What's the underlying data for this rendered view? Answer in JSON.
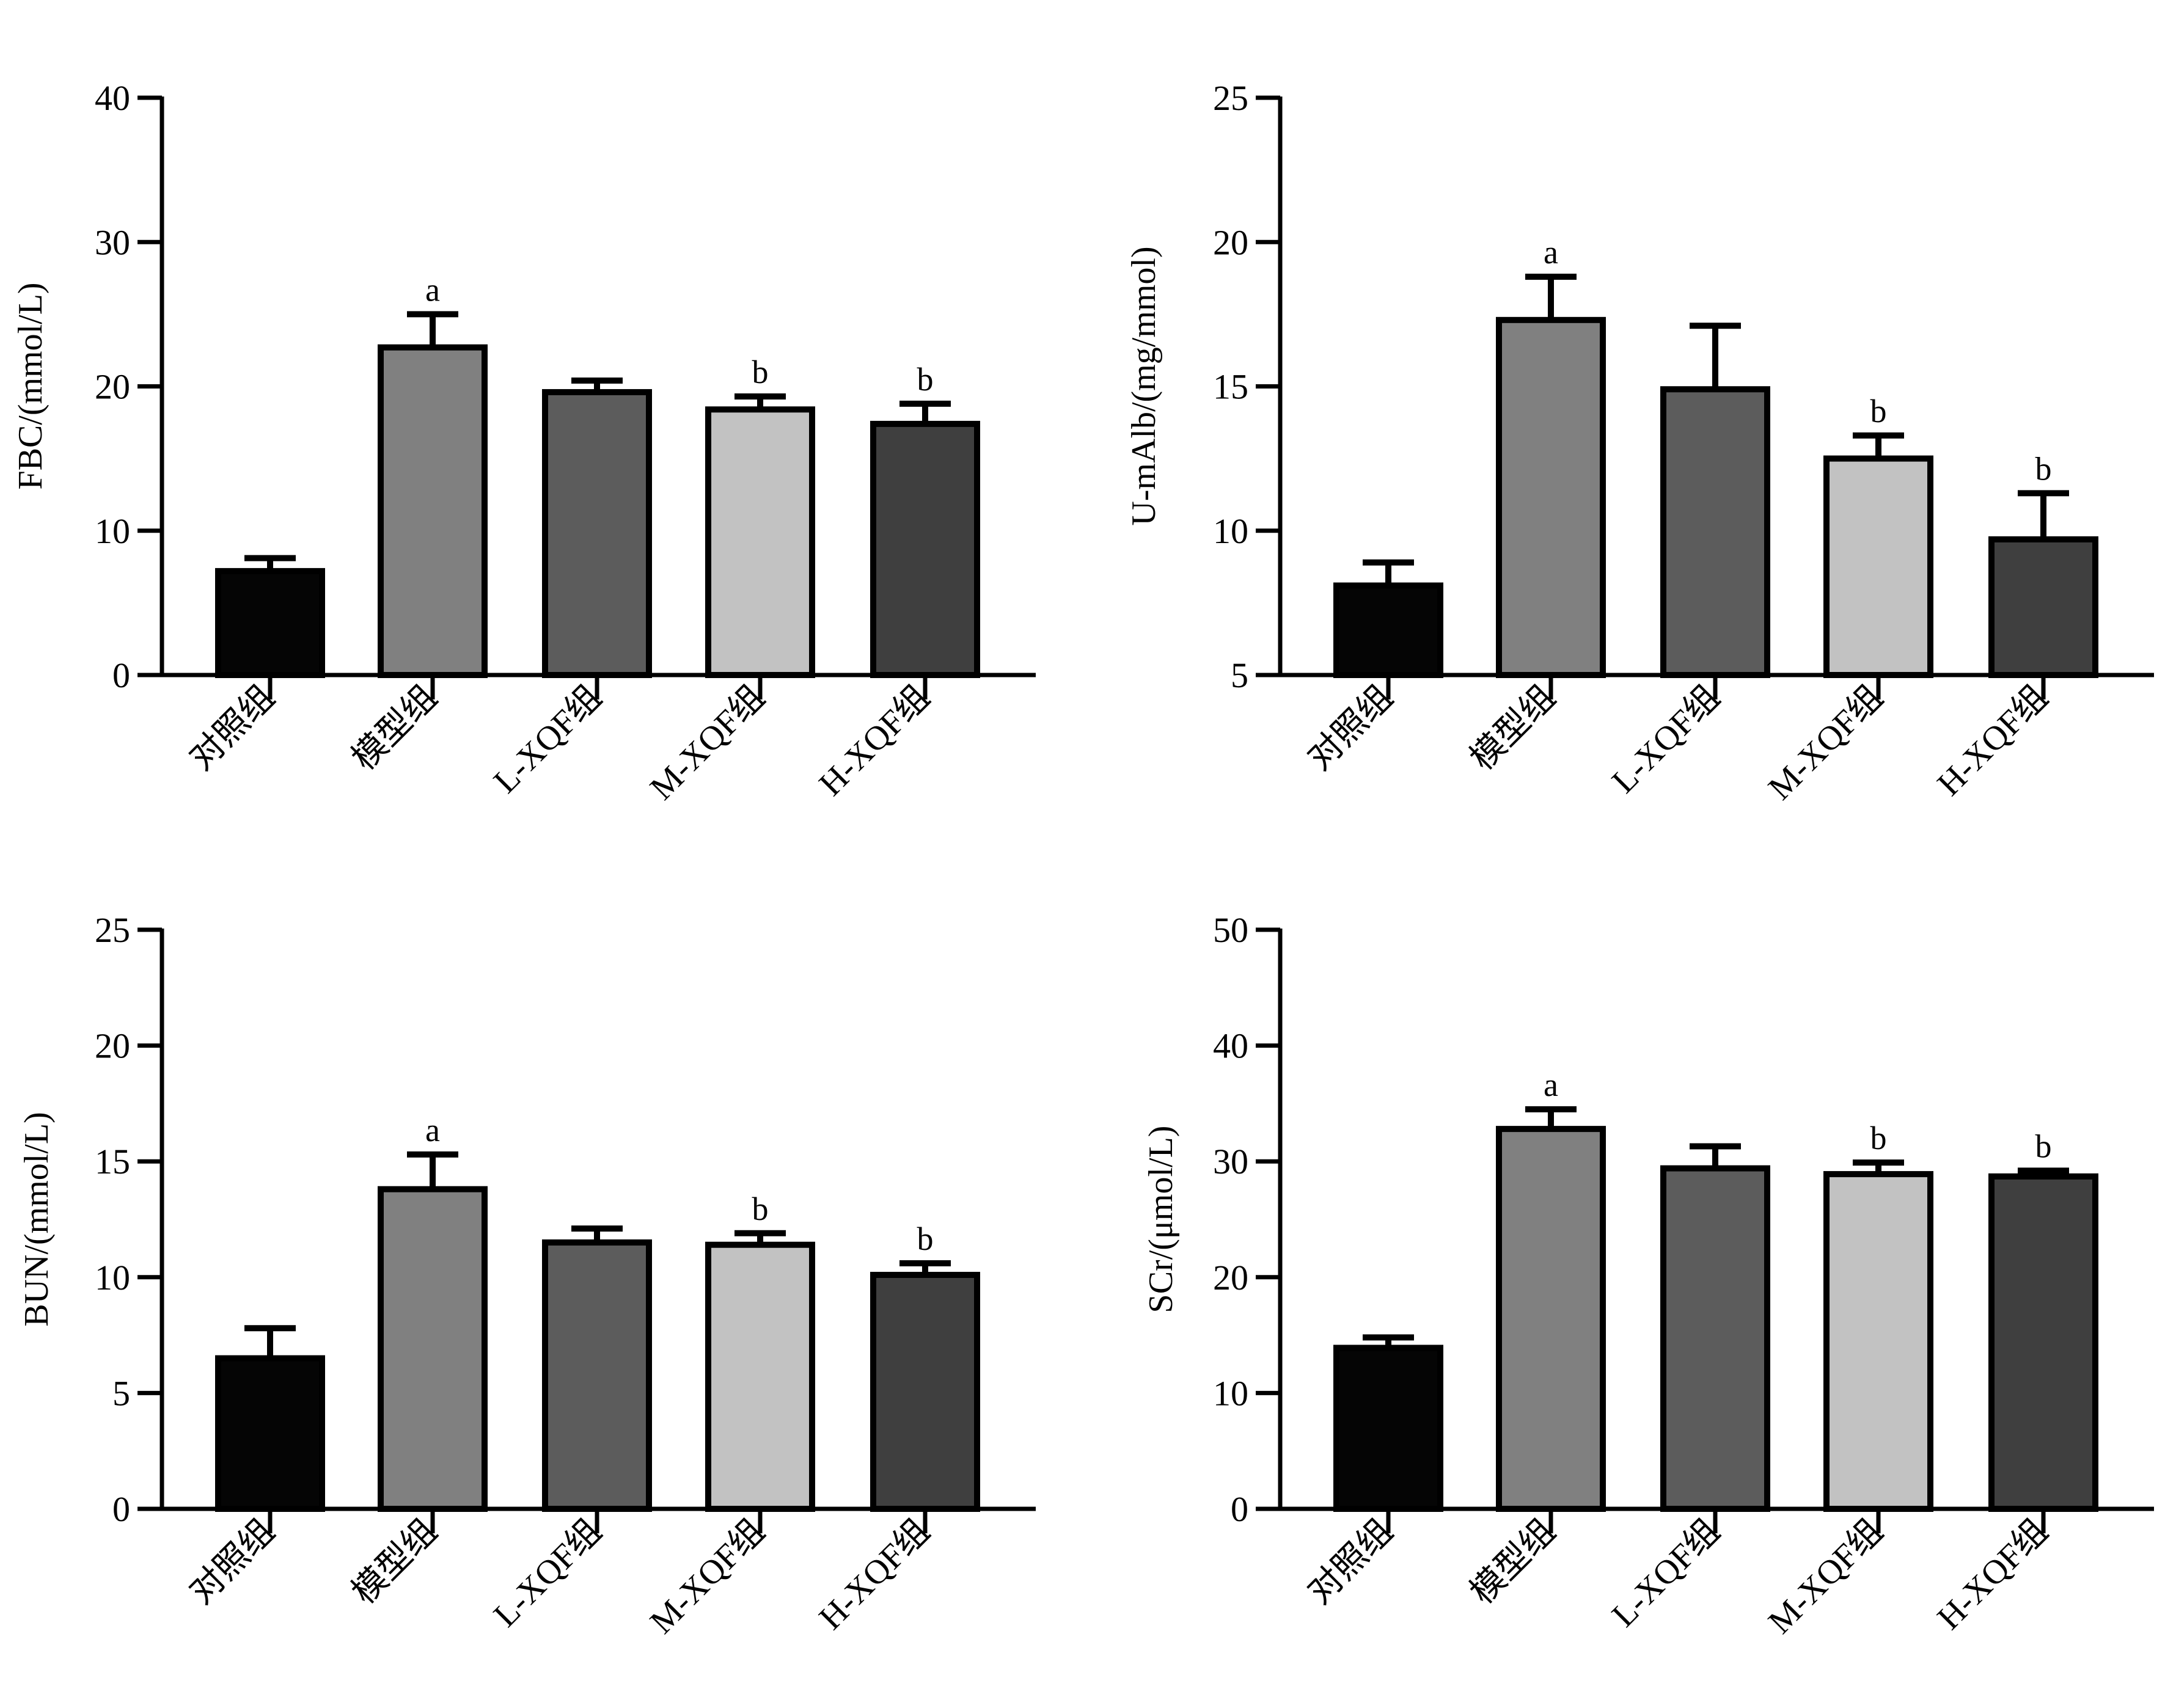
{
  "chart_data": [
    {
      "type": "bar",
      "ylabel": "FBC/(mmol/L)",
      "categories": [
        "对照组",
        "模型组",
        "L-XQF组",
        "M-XQF组",
        "H-XQF组"
      ],
      "values": [
        7.2,
        22.7,
        19.6,
        18.4,
        17.4
      ],
      "errors": [
        0.9,
        2.3,
        0.8,
        0.9,
        1.4
      ],
      "annotations": [
        "",
        "a",
        "",
        "b",
        "b"
      ],
      "bar_colors": [
        "#050505",
        "#808080",
        "#5c5c5c",
        "#c2c2c2",
        "#3f3f3f"
      ],
      "ylim": [
        0,
        40
      ],
      "yticks": [
        0,
        10,
        20,
        30,
        40
      ],
      "ytick_labels": [
        "0",
        "10",
        "20",
        "30",
        "40"
      ]
    },
    {
      "type": "bar",
      "ylabel": "U-mAlb/(mg/mmol)",
      "categories": [
        "对照组",
        "模型组",
        "L-XQF组",
        "M-XQF组",
        "H-XQF组"
      ],
      "values": [
        8.1,
        17.3,
        14.9,
        12.5,
        9.7
      ],
      "errors": [
        0.8,
        1.5,
        2.2,
        0.8,
        1.6
      ],
      "annotations": [
        "",
        "a",
        "",
        "b",
        "b"
      ],
      "bar_colors": [
        "#050505",
        "#808080",
        "#5c5c5c",
        "#c2c2c2",
        "#3f3f3f"
      ],
      "ylim": [
        5,
        25
      ],
      "yticks": [
        5,
        10,
        15,
        20,
        25
      ],
      "ytick_labels": [
        "5",
        "10",
        "15",
        "20",
        "25"
      ]
    },
    {
      "type": "bar",
      "ylabel": "BUN/(mmol/L)",
      "categories": [
        "对照组",
        "模型组",
        "L-XQF组",
        "M-XQF组",
        "H-XQF组"
      ],
      "values": [
        6.5,
        13.8,
        11.5,
        11.4,
        10.1
      ],
      "errors": [
        1.3,
        1.5,
        0.6,
        0.5,
        0.5
      ],
      "annotations": [
        "",
        "a",
        "",
        "b",
        "b"
      ],
      "bar_colors": [
        "#050505",
        "#808080",
        "#5c5c5c",
        "#c2c2c2",
        "#3f3f3f"
      ],
      "ylim": [
        0,
        25
      ],
      "yticks": [
        0,
        5,
        10,
        15,
        20,
        25
      ],
      "ytick_labels": [
        "0",
        "5",
        "10",
        "15",
        "20",
        "25"
      ]
    },
    {
      "type": "bar",
      "ylabel": "SCr/(μmol/L)",
      "categories": [
        "对照组",
        "模型组",
        "L-XQF组",
        "M-XQF组",
        "H-XQF组"
      ],
      "values": [
        13.9,
        32.8,
        29.4,
        28.9,
        28.7
      ],
      "errors": [
        0.9,
        1.7,
        1.9,
        1.0,
        0.5
      ],
      "annotations": [
        "",
        "a",
        "",
        "b",
        "b"
      ],
      "bar_colors": [
        "#050505",
        "#808080",
        "#5c5c5c",
        "#c2c2c2",
        "#3f3f3f"
      ],
      "ylim": [
        0,
        50
      ],
      "yticks": [
        0,
        10,
        20,
        30,
        40,
        50
      ],
      "ytick_labels": [
        "0",
        "10",
        "20",
        "30",
        "40",
        "50"
      ]
    }
  ]
}
